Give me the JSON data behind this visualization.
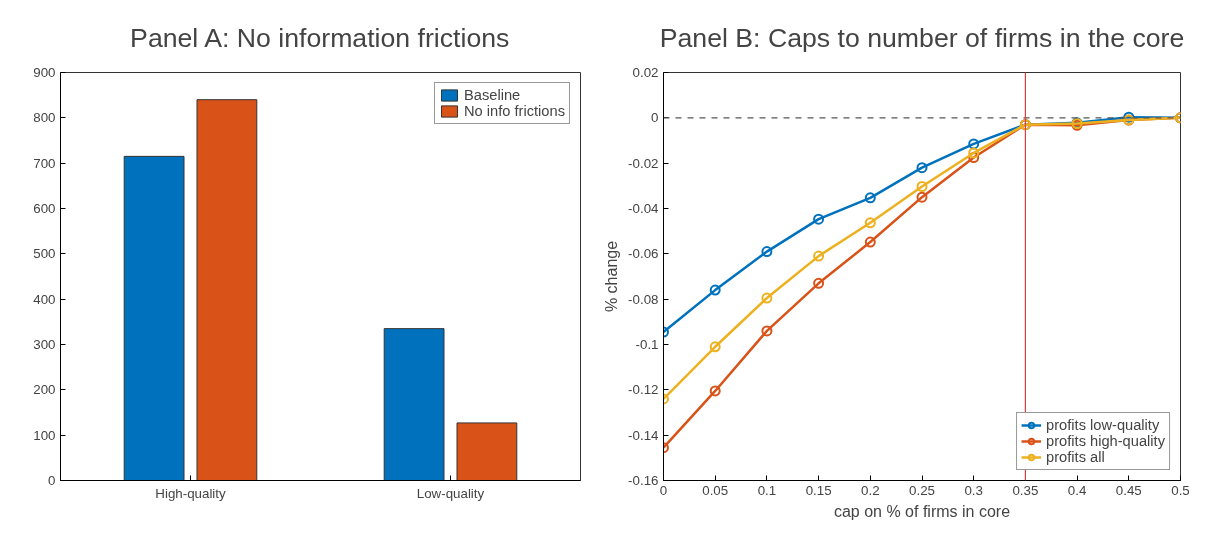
{
  "chart_data": [
    {
      "type": "bar",
      "title": "Panel A: No information frictions",
      "categories": [
        "High-quality",
        "Low-quality"
      ],
      "series": [
        {
          "name": "Baseline",
          "color": "#0072bd",
          "values": [
            715,
            335
          ]
        },
        {
          "name": "No info frictions",
          "color": "#d95319",
          "values": [
            840,
            127
          ]
        }
      ],
      "ylim": [
        0,
        900
      ],
      "yticks": [
        0,
        100,
        200,
        300,
        400,
        500,
        600,
        700,
        800,
        900
      ],
      "grid": false,
      "legend": "top right"
    },
    {
      "type": "line",
      "title": "Panel B: Caps to number of firms in the core",
      "xlabel": "cap on % of firms in core",
      "ylabel": "% change",
      "x": [
        0,
        0.05,
        0.1,
        0.15,
        0.2,
        0.25,
        0.3,
        0.35,
        0.4,
        0.45,
        0.5
      ],
      "series": [
        {
          "name": "profits low-quality",
          "color": "#0072bd",
          "values": [
            -0.0945,
            -0.076,
            -0.059,
            -0.0447,
            -0.0353,
            -0.022,
            -0.0115,
            -0.003,
            -0.0022,
            0.0003,
            0
          ]
        },
        {
          "name": "profits high-quality",
          "color": "#d95319",
          "values": [
            -0.1455,
            -0.1205,
            -0.094,
            -0.073,
            -0.0548,
            -0.035,
            -0.0175,
            -0.003,
            -0.0033,
            -0.001,
            0
          ]
        },
        {
          "name": "profits all",
          "color": "#edb120",
          "values": [
            -0.124,
            -0.101,
            -0.0795,
            -0.061,
            -0.0463,
            -0.0303,
            -0.0155,
            -0.003,
            -0.0025,
            -0.001,
            0
          ]
        }
      ],
      "xlim": [
        0,
        0.5
      ],
      "xticks": [
        0,
        0.05,
        0.1,
        0.15,
        0.2,
        0.25,
        0.3,
        0.35,
        0.4,
        0.45,
        0.5
      ],
      "ylim": [
        -0.16,
        0.02
      ],
      "yticks": [
        -0.16,
        -0.14,
        -0.12,
        -0.1,
        -0.08,
        -0.06,
        -0.04,
        -0.02,
        0,
        0.02
      ],
      "ref_lines": [
        {
          "axis": "y",
          "value": 0,
          "color": "#555555",
          "line_style": "dashed"
        },
        {
          "axis": "x",
          "value": 0.35,
          "color": "#d94040",
          "line_style": "solid"
        }
      ],
      "marker": "circle",
      "line_style": "solid",
      "grid": false,
      "legend": "bottom right"
    }
  ]
}
